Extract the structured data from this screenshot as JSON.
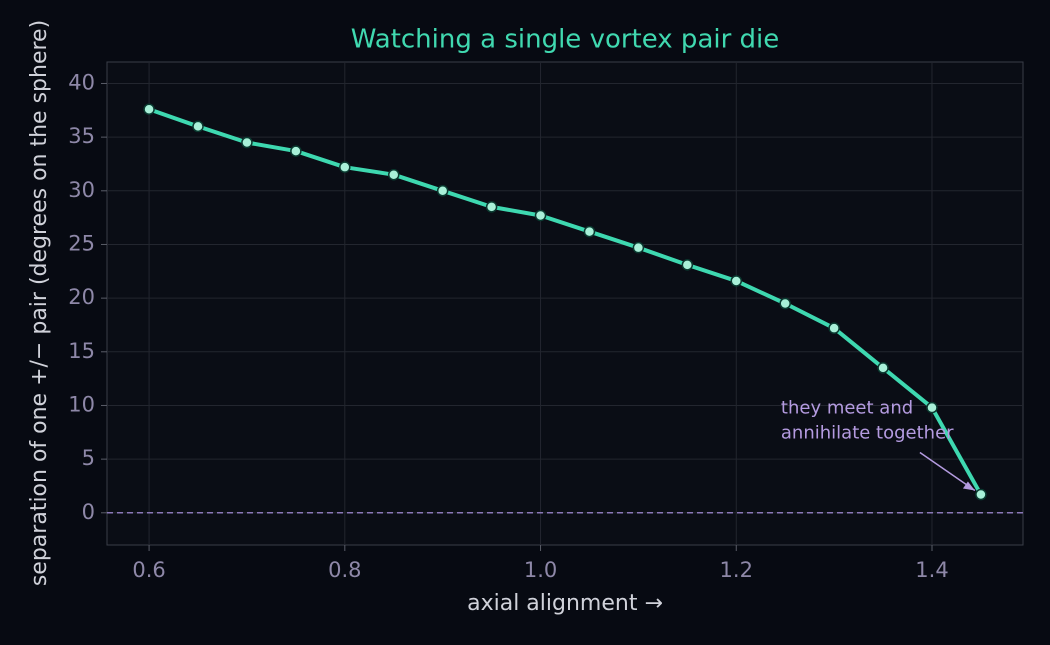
{
  "chart_data": {
    "type": "line",
    "title": "Watching a single vortex pair die",
    "xlabel": "axial alignment  →",
    "ylabel": "separation of one +/− pair  (degrees on the sphere)",
    "x": [
      0.6,
      0.65,
      0.7,
      0.75,
      0.8,
      0.85,
      0.9,
      0.95,
      1.0,
      1.05,
      1.1,
      1.15,
      1.2,
      1.25,
      1.3,
      1.35,
      1.4,
      1.45
    ],
    "series": [
      {
        "color": "#3ed8b0",
        "values": [
          37.6,
          36.0,
          34.5,
          33.7,
          32.2,
          31.5,
          30.0,
          28.5,
          27.7,
          26.2,
          24.7,
          23.1,
          21.6,
          19.5,
          17.2,
          13.5,
          9.8,
          1.7
        ]
      }
    ],
    "xlim": [
      0.557,
      1.493
    ],
    "ylim": [
      -3,
      42
    ],
    "xticks": [
      0.6,
      0.8,
      {
        "value": 1,
        "label": "1.0"
      },
      1.2,
      1.4
    ],
    "yticks": [
      0,
      5,
      10,
      15,
      20,
      25,
      30,
      35,
      40
    ],
    "grid": true,
    "reference_line": {
      "y": 0,
      "color": "#8a78b8"
    },
    "annotation": {
      "text": [
        "they meet and",
        "annihilate together"
      ],
      "color": "#b49be0"
    }
  }
}
